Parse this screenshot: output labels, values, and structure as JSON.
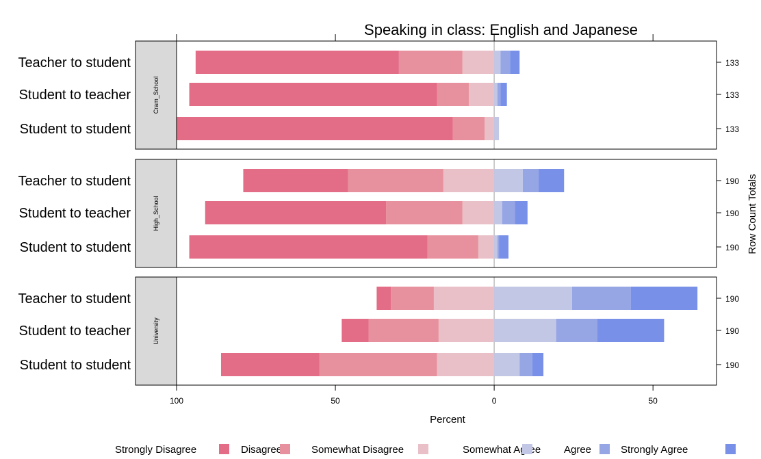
{
  "chart_data": {
    "type": "bar",
    "subtype": "diverging-stacked-horizontal",
    "title": "Speaking in class: English and Japanese",
    "xlabel": "Percent",
    "right_axis_label": "Row Count Totals",
    "xlim": [
      -100,
      70
    ],
    "x_ticks": [
      -100,
      -50,
      0,
      50
    ],
    "x_tick_labels": [
      "100",
      "50",
      "0",
      "50"
    ],
    "legend_position": "bottom",
    "legend": [
      "Strongly Disagree",
      "Disagree",
      "Somewhat Disagree",
      "Somewhat Agree",
      "Agree",
      "Strongly Agree"
    ],
    "colors": [
      "#E36C86",
      "#E8919E",
      "#E9C0C7",
      "#C3C7E6",
      "#96A5E4",
      "#7890E8"
    ],
    "panels": [
      {
        "strip": "Cram_School",
        "rows": [
          {
            "label": "Teacher to student",
            "total": "133",
            "values": [
              64,
              20,
              10,
              2,
              3,
              3
            ]
          },
          {
            "label": "Student to teacher",
            "total": "133",
            "values": [
              78,
              10,
              8,
              1,
              1,
              2
            ]
          },
          {
            "label": "Student to student",
            "total": "133",
            "values": [
              87,
              10,
              3,
              1.5,
              0,
              0
            ]
          }
        ]
      },
      {
        "strip": "High_School",
        "rows": [
          {
            "label": "Teacher to student",
            "total": "190",
            "values": [
              33,
              30,
              16,
              9,
              5,
              8
            ]
          },
          {
            "label": "Student to teacher",
            "total": "190",
            "values": [
              57,
              24,
              10,
              2.5,
              4,
              4
            ]
          },
          {
            "label": "Student to student",
            "total": "190",
            "values": [
              75,
              16,
              5,
              1,
              0.5,
              3
            ]
          }
        ]
      },
      {
        "strip": "University",
        "rows": [
          {
            "label": "Teacher to student",
            "total": "190",
            "values": [
              4.5,
              13.5,
              19,
              24.5,
              18.5,
              21
            ]
          },
          {
            "label": "Student to teacher",
            "total": "190",
            "values": [
              8.5,
              22,
              17.5,
              19.5,
              13,
              21
            ]
          },
          {
            "label": "Student to student",
            "total": "190",
            "values": [
              31,
              37,
              18,
              8,
              4,
              3.5
            ]
          }
        ]
      }
    ]
  }
}
